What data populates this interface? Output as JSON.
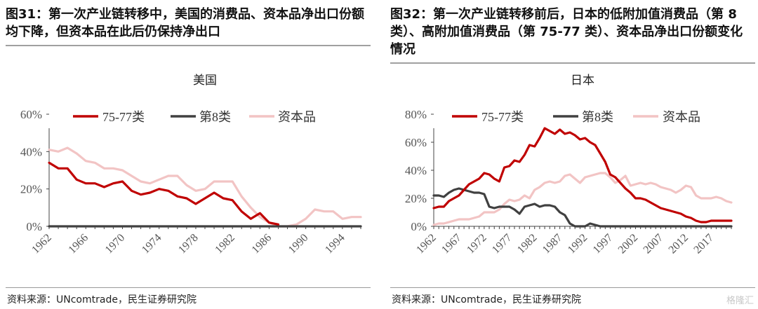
{
  "panels": [
    {
      "figure_title": "图31：第一次产业链转移中，美国的消费品、资本品净出口份额均下降，但资本品在此后仍保持净出口",
      "source": "资料来源：UNcomtrade，民生证券研究院"
    },
    {
      "figure_title": "图32：第一次产业链转移前后，日本的低附加值消费品（第 8 类）、高附加值消费品（第 75-77 类）、资本品净出口份额变化情况",
      "source": "资料来源：UNcomtrade，民生证券研究院"
    }
  ],
  "watermark": "格隆汇",
  "chart_data": [
    {
      "type": "line",
      "title": "美国",
      "xlabel": "",
      "ylabel": "",
      "ylim": [
        0,
        60
      ],
      "yticks": [
        "0%",
        "20%",
        "40%",
        "60%"
      ],
      "xlim": [
        1962,
        1996
      ],
      "xticks": [
        "1962",
        "1966",
        "1970",
        "1974",
        "1978",
        "1982",
        "1986",
        "1990",
        "1994"
      ],
      "grid": false,
      "legend": "top",
      "series": [
        {
          "name": "75-77类",
          "color": "#c00000",
          "x": [
            1962,
            1963,
            1964,
            1965,
            1966,
            1967,
            1968,
            1969,
            1970,
            1971,
            1972,
            1973,
            1974,
            1975,
            1976,
            1977,
            1978,
            1979,
            1980,
            1981,
            1982,
            1983,
            1984,
            1985,
            1986,
            1987
          ],
          "values": [
            34,
            31,
            31,
            25,
            23,
            23,
            21,
            23,
            24,
            19,
            17,
            18,
            20,
            19,
            16,
            15,
            12,
            15,
            18,
            15,
            14,
            8,
            4,
            7,
            2,
            1
          ]
        },
        {
          "name": "第8类",
          "color": "#404040",
          "x": [
            1962,
            1996
          ],
          "values": [
            0,
            0
          ]
        },
        {
          "name": "资本品",
          "color": "#f2c4c4",
          "x": [
            1962,
            1963,
            1964,
            1965,
            1966,
            1967,
            1968,
            1969,
            1970,
            1971,
            1972,
            1973,
            1974,
            1975,
            1976,
            1977,
            1978,
            1979,
            1980,
            1981,
            1982,
            1983,
            1984,
            1985,
            1986,
            1987,
            1988,
            1989,
            1990,
            1991,
            1992,
            1993,
            1994,
            1995,
            1996
          ],
          "values": [
            41,
            40,
            42,
            39,
            35,
            34,
            31,
            31,
            30,
            27,
            24,
            23,
            25,
            27,
            27,
            22,
            19,
            20,
            24,
            24,
            24,
            16,
            10,
            5,
            2,
            0,
            0,
            1,
            4,
            9,
            8,
            8,
            4,
            5,
            5
          ]
        }
      ]
    },
    {
      "type": "line",
      "title": "日本",
      "xlabel": "",
      "ylabel": "",
      "ylim": [
        0,
        80
      ],
      "yticks": [
        "0%",
        "20%",
        "40%",
        "60%",
        "80%"
      ],
      "xlim": [
        1962,
        2021
      ],
      "xticks": [
        "1962",
        "1967",
        "1972",
        "1977",
        "1982",
        "1987",
        "1992",
        "1997",
        "2002",
        "2007",
        "2012",
        "2017"
      ],
      "grid": false,
      "legend": "top",
      "series": [
        {
          "name": "75-77类",
          "color": "#c00000",
          "x": [
            1962,
            1963,
            1964,
            1965,
            1966,
            1967,
            1968,
            1969,
            1970,
            1971,
            1972,
            1973,
            1974,
            1975,
            1976,
            1977,
            1978,
            1979,
            1980,
            1981,
            1982,
            1983,
            1984,
            1985,
            1986,
            1987,
            1988,
            1989,
            1990,
            1991,
            1992,
            1993,
            1994,
            1995,
            1996,
            1997,
            1998,
            1999,
            2000,
            2001,
            2002,
            2003,
            2004,
            2005,
            2006,
            2007,
            2008,
            2009,
            2010,
            2011,
            2012,
            2013,
            2014,
            2015,
            2016,
            2017,
            2018,
            2019,
            2020,
            2021
          ],
          "values": [
            13,
            14,
            14,
            18,
            20,
            22,
            26,
            30,
            32,
            34,
            38,
            37,
            34,
            32,
            42,
            43,
            47,
            46,
            51,
            58,
            57,
            63,
            70,
            68,
            66,
            69,
            66,
            67,
            65,
            62,
            63,
            60,
            58,
            52,
            46,
            37,
            35,
            31,
            27,
            24,
            20,
            20,
            19,
            17,
            15,
            13,
            12,
            11,
            10,
            9,
            7,
            6,
            4,
            3,
            3,
            4,
            4,
            4,
            4,
            4
          ]
        },
        {
          "name": "第8类",
          "color": "#404040",
          "x": [
            1962,
            1963,
            1964,
            1965,
            1966,
            1967,
            1968,
            1969,
            1970,
            1971,
            1972,
            1973,
            1974,
            1975,
            1976,
            1977,
            1978,
            1979,
            1980,
            1981,
            1982,
            1983,
            1984,
            1985,
            1986,
            1987,
            1988,
            1989,
            1990,
            1991,
            1992,
            1993,
            1994,
            1995,
            1996,
            2021
          ],
          "values": [
            22,
            22,
            21,
            24,
            26,
            27,
            26,
            25,
            24,
            24,
            23,
            14,
            13,
            14,
            14,
            14,
            12,
            9,
            14,
            15,
            16,
            14,
            15,
            15,
            14,
            10,
            8,
            2,
            0,
            0,
            0,
            2,
            1,
            0,
            0,
            0
          ]
        },
        {
          "name": "资本品",
          "color": "#f2c4c4",
          "x": [
            1962,
            1963,
            1964,
            1965,
            1966,
            1967,
            1968,
            1969,
            1970,
            1971,
            1972,
            1973,
            1974,
            1975,
            1976,
            1977,
            1978,
            1979,
            1980,
            1981,
            1982,
            1983,
            1984,
            1985,
            1986,
            1987,
            1988,
            1989,
            1990,
            1991,
            1992,
            1993,
            1994,
            1995,
            1996,
            1997,
            1998,
            1999,
            2000,
            2001,
            2002,
            2003,
            2004,
            2005,
            2006,
            2007,
            2008,
            2009,
            2010,
            2011,
            2012,
            2013,
            2014,
            2015,
            2016,
            2017,
            2018,
            2019,
            2020,
            2021
          ],
          "values": [
            1,
            2,
            2,
            3,
            4,
            5,
            5,
            5,
            6,
            7,
            10,
            10,
            10,
            12,
            16,
            19,
            18,
            19,
            22,
            20,
            26,
            28,
            31,
            32,
            31,
            32,
            36,
            37,
            34,
            31,
            35,
            36,
            37,
            38,
            38,
            35,
            31,
            33,
            36,
            29,
            30,
            31,
            30,
            31,
            30,
            28,
            27,
            26,
            24,
            26,
            29,
            28,
            22,
            20,
            20,
            20,
            21,
            20,
            18,
            17
          ]
        }
      ]
    }
  ]
}
